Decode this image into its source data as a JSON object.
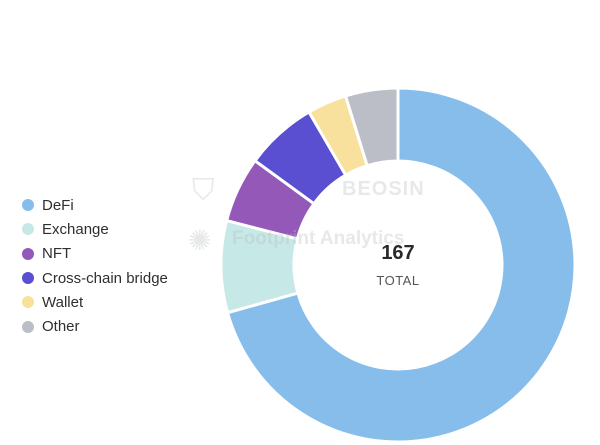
{
  "watermarks": {
    "beosin": "BEOSIN",
    "footprint": "Footprint Analytics"
  },
  "chart_data": {
    "type": "pie",
    "donut": true,
    "center_value": "167",
    "center_label": "TOTAL",
    "legend_position": "left",
    "slices": [
      {
        "name": "DeFi",
        "value": 118,
        "color": "#87BDEA"
      },
      {
        "name": "Exchange",
        "value": 14,
        "color": "#C6E8E6"
      },
      {
        "name": "NFT",
        "value": 10,
        "color": "#9458B8"
      },
      {
        "name": "Cross-chain bridge",
        "value": 11,
        "color": "#5A4FD0"
      },
      {
        "name": "Wallet",
        "value": 6,
        "color": "#F8E19C"
      },
      {
        "name": "Other",
        "value": 8,
        "color": "#BBBEC6"
      }
    ]
  }
}
